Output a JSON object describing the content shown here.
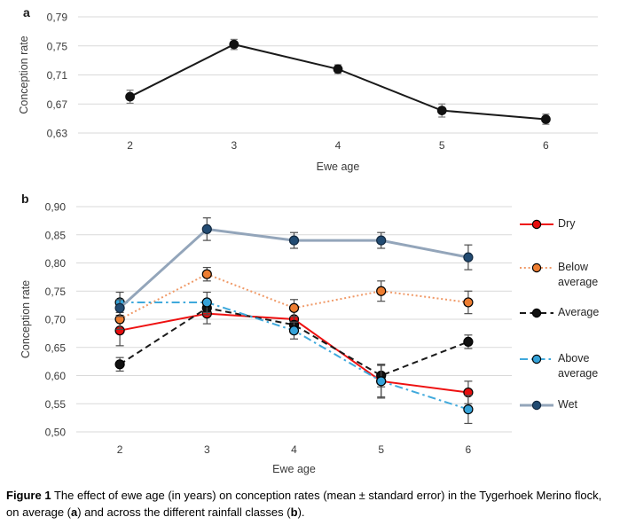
{
  "panels": {
    "a_label": "a",
    "b_label": "b"
  },
  "chart_data": [
    {
      "id": "a",
      "type": "line",
      "title": "",
      "xlabel": "Ewe age",
      "ylabel": "Conception rate",
      "x_categories": [
        "2",
        "3",
        "4",
        "5",
        "6"
      ],
      "ylim": [
        0.63,
        0.79
      ],
      "yticks": [
        0.63,
        0.67,
        0.71,
        0.75,
        0.79
      ],
      "ytick_labels": [
        "0,63",
        "0,67",
        "0,71",
        "0,75",
        "0,79"
      ],
      "grid": true,
      "legend": null,
      "series": [
        {
          "name": "overall-mean",
          "color": "#1a1a1a",
          "marker_color": "#111111",
          "marker_stroke": "#111111",
          "dash": "solid",
          "line_width": 2,
          "values": [
            0.68,
            0.752,
            0.718,
            0.661,
            0.649
          ],
          "errors": [
            0.009,
            0.007,
            0.006,
            0.009,
            0.007
          ]
        }
      ]
    },
    {
      "id": "b",
      "type": "line",
      "title": "",
      "xlabel": "Ewe age",
      "ylabel": "Conception rate",
      "x_categories": [
        "2",
        "3",
        "4",
        "5",
        "6"
      ],
      "ylim": [
        0.5,
        0.9
      ],
      "yticks": [
        0.5,
        0.55,
        0.6,
        0.65,
        0.7,
        0.75,
        0.8,
        0.85,
        0.9
      ],
      "ytick_labels": [
        "0,50",
        "0,55",
        "0,60",
        "0,65",
        "0,70",
        "0,75",
        "0,80",
        "0,85",
        "0,90"
      ],
      "grid": true,
      "legend": {
        "position": "right",
        "items": [
          "Dry",
          "Below average",
          "Average",
          "Above average",
          "Wet"
        ]
      },
      "series": [
        {
          "name": "Dry",
          "color": "#ee1111",
          "marker_color": "#e60e0e",
          "marker_stroke": "#000000",
          "dash": "solid",
          "line_width": 2,
          "values": [
            0.68,
            0.71,
            0.7,
            0.59,
            0.57
          ],
          "errors": [
            0.027,
            0.018,
            0.018,
            0.028,
            0.02
          ]
        },
        {
          "name": "Below average",
          "color": "#f09a68",
          "marker_color": "#ed7d31",
          "marker_stroke": "#000000",
          "dash": "dotted",
          "line_width": 2,
          "values": [
            0.7,
            0.78,
            0.72,
            0.75,
            0.73
          ],
          "errors": [
            0.018,
            0.012,
            0.015,
            0.018,
            0.02
          ]
        },
        {
          "name": "Average",
          "color": "#1a1a1a",
          "marker_color": "#111111",
          "marker_stroke": "#000000",
          "dash": "dashed",
          "line_width": 2,
          "values": [
            0.62,
            0.72,
            0.69,
            0.6,
            0.66
          ],
          "errors": [
            0.012,
            0.012,
            0.015,
            0.02,
            0.012
          ]
        },
        {
          "name": "Above average",
          "color": "#3fa9dc",
          "marker_color": "#35a3d9",
          "marker_stroke": "#000000",
          "dash": "dashdot",
          "line_width": 2,
          "values": [
            0.73,
            0.73,
            0.68,
            0.59,
            0.54
          ],
          "errors": [
            0.018,
            0.018,
            0.015,
            0.03,
            0.025
          ]
        },
        {
          "name": "Wet",
          "color": "#93a5ba",
          "marker_color": "#224b72",
          "marker_stroke": "#12283f",
          "dash": "solid",
          "line_width": 3,
          "values": [
            0.72,
            0.86,
            0.84,
            0.84,
            0.81
          ],
          "errors": [
            0.015,
            0.02,
            0.014,
            0.014,
            0.022
          ]
        }
      ]
    }
  ],
  "caption": {
    "segments": [
      {
        "text": "Figure 1",
        "bold": true
      },
      {
        "text": " The effect of ewe age (in years) on conception rates (mean ± standard error) in the Tygerhoek Merino flock, on average (",
        "bold": false
      },
      {
        "text": "a",
        "bold": true
      },
      {
        "text": ") and across the different rainfall classes (",
        "bold": false
      },
      {
        "text": "b",
        "bold": true
      },
      {
        "text": ").",
        "bold": false
      }
    ]
  }
}
